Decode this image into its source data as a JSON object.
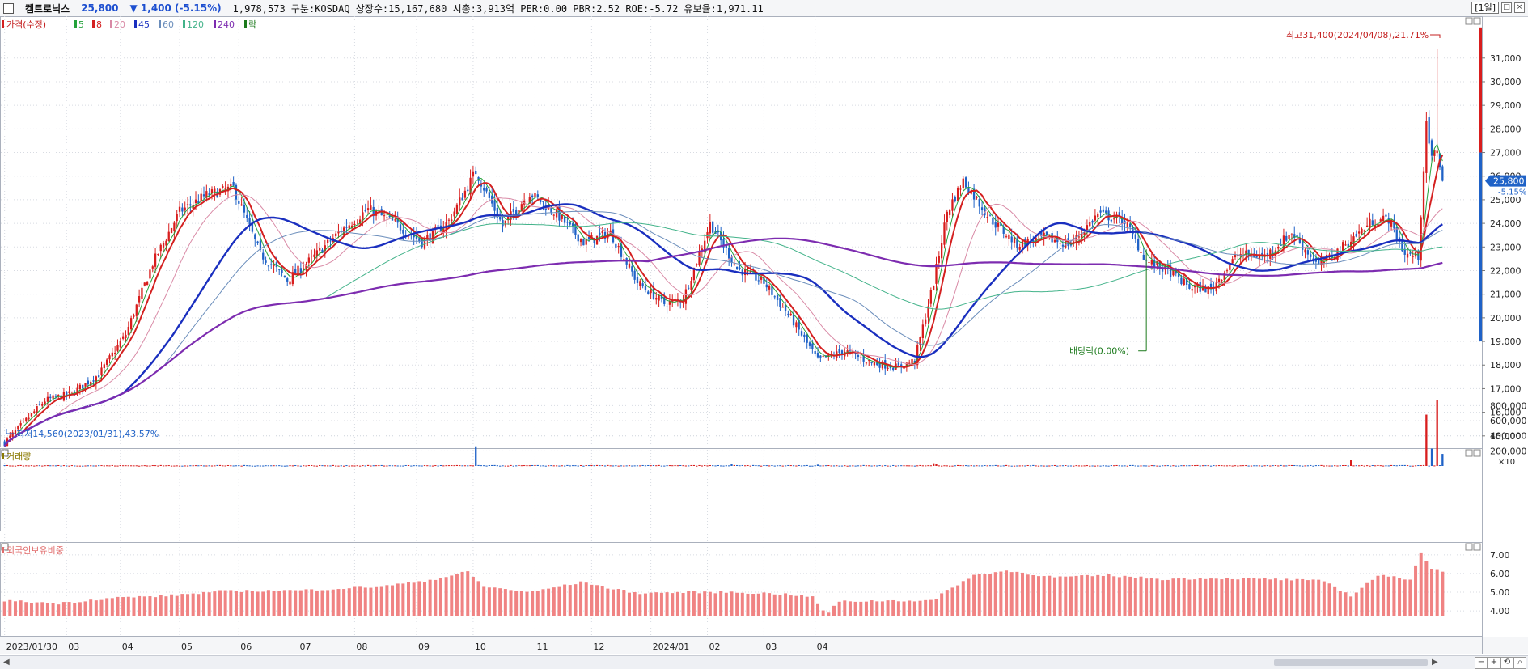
{
  "header": {
    "stock_name": "켐트로닉스",
    "price": "25,800",
    "change": "▼ 1,400  (-5.15%)",
    "info": "1,978,573  구분:KOSDAQ 상장수:15,167,680 시총:3,913억 PER:0.00 PBR:2.52 ROE:-5.72 유보율:1,971.11",
    "period": "[1일]"
  },
  "legend": {
    "price": "가격(수정)",
    "ma": [
      {
        "label": "5",
        "color": "#23a23a"
      },
      {
        "label": "8",
        "color": "#d42020"
      },
      {
        "label": "20",
        "color": "#d98aa6"
      },
      {
        "label": "45",
        "color": "#1a2fbf"
      },
      {
        "label": "60",
        "color": "#6a8dbb"
      },
      {
        "label": "120",
        "color": "#43b38a"
      },
      {
        "label": "240",
        "color": "#7d2cb0"
      },
      {
        "label": "락",
        "color": "#1c7a1c"
      }
    ],
    "volume": "거래량",
    "foreign": "외국인보유비중"
  },
  "annotations": {
    "high": "최고31,400(2024/04/08),21.71%",
    "low": "최저14,560(2023/01/31),43.57%",
    "dividend": "배당락(0.00%)",
    "last_price": "25,800",
    "last_change": "-5.15%"
  },
  "colors": {
    "up": "#d81d1d",
    "down": "#1f62c7",
    "foreign_bar": "#f08383",
    "grid": "#d8dbe2"
  },
  "chart_data": [
    {
      "type": "candlestick",
      "title": "가격(수정)",
      "ylim": [
        14000,
        32500
      ],
      "y_ticks": [
        "31,000",
        "30,000",
        "29,000",
        "28,000",
        "27,000",
        "26,000",
        "25,000",
        "24,000",
        "23,000",
        "22,000",
        "21,000",
        "20,000",
        "19,000",
        "18,000",
        "17,000",
        "16,000",
        "15,000"
      ],
      "x_ticks": [
        "2023/01/30",
        "03",
        "04",
        "05",
        "06",
        "07",
        "08",
        "09",
        "10",
        "11",
        "12",
        "2024/01",
        "02",
        "03",
        "04"
      ],
      "trend_closes": [
        [
          0,
          14700
        ],
        [
          5,
          15300
        ],
        [
          15,
          16500
        ],
        [
          25,
          16800
        ],
        [
          35,
          17600
        ],
        [
          45,
          19300
        ],
        [
          55,
          22300
        ],
        [
          65,
          24500
        ],
        [
          75,
          25200
        ],
        [
          85,
          25500
        ],
        [
          95,
          22700
        ],
        [
          105,
          21600
        ],
        [
          115,
          22600
        ],
        [
          125,
          23700
        ],
        [
          135,
          24600
        ],
        [
          145,
          24000
        ],
        [
          155,
          23200
        ],
        [
          165,
          24100
        ],
        [
          175,
          26200
        ],
        [
          185,
          23900
        ],
        [
          195,
          25300
        ],
        [
          205,
          24400
        ],
        [
          215,
          23200
        ],
        [
          225,
          23600
        ],
        [
          235,
          21500
        ],
        [
          245,
          20600
        ],
        [
          252,
          20800
        ],
        [
          262,
          24000
        ],
        [
          272,
          22100
        ],
        [
          282,
          21500
        ],
        [
          292,
          20000
        ],
        [
          302,
          18200
        ],
        [
          312,
          18600
        ],
        [
          322,
          18100
        ],
        [
          332,
          17900
        ],
        [
          338,
          18200
        ],
        [
          345,
          21500
        ],
        [
          350,
          24500
        ],
        [
          356,
          25800
        ],
        [
          366,
          24200
        ],
        [
          376,
          23100
        ],
        [
          386,
          23400
        ],
        [
          396,
          23100
        ],
        [
          406,
          24400
        ],
        [
          416,
          24100
        ],
        [
          424,
          22400
        ],
        [
          432,
          22000
        ],
        [
          440,
          21300
        ],
        [
          448,
          21200
        ],
        [
          458,
          22700
        ],
        [
          468,
          22600
        ],
        [
          478,
          23600
        ],
        [
          488,
          22200
        ],
        [
          498,
          23100
        ],
        [
          508,
          24100
        ],
        [
          514,
          24200
        ],
        [
          520,
          22700
        ],
        [
          525,
          22600
        ],
        [
          528,
          28100
        ],
        [
          530,
          26700
        ],
        [
          532,
          27200
        ],
        [
          534,
          25800
        ]
      ],
      "high": 31400,
      "low": 14560,
      "last_close": 25800,
      "last_change_pct": -5.15
    },
    {
      "type": "bar",
      "title": "거래량",
      "unit": "×10",
      "ylim": [
        0,
        900000
      ],
      "y_ticks": [
        "800,000",
        "600,000",
        "400,000",
        "200,000"
      ],
      "spikes": [
        [
          175,
          260000
        ],
        [
          270,
          27000
        ],
        [
          302,
          18000
        ],
        [
          345,
          36000
        ],
        [
          346,
          22000
        ],
        [
          500,
          75000
        ],
        [
          528,
          680000
        ],
        [
          530,
          230000
        ],
        [
          532,
          870000
        ],
        [
          534,
          160000
        ]
      ]
    },
    {
      "type": "bar",
      "title": "외국인보유비중",
      "ylim": [
        3.7,
        7.6
      ],
      "y_ticks": [
        "7.00",
        "6.00",
        "5.00",
        "4.00"
      ],
      "trend": [
        [
          0,
          4.55
        ],
        [
          20,
          4.4
        ],
        [
          40,
          4.7
        ],
        [
          60,
          4.8
        ],
        [
          80,
          5.05
        ],
        [
          110,
          5.1
        ],
        [
          140,
          5.3
        ],
        [
          160,
          5.7
        ],
        [
          172,
          6.1
        ],
        [
          178,
          5.3
        ],
        [
          195,
          5.0
        ],
        [
          215,
          5.55
        ],
        [
          225,
          5.2
        ],
        [
          235,
          4.95
        ],
        [
          255,
          5.0
        ],
        [
          270,
          5.0
        ],
        [
          290,
          4.9
        ],
        [
          300,
          4.75
        ],
        [
          305,
          3.8
        ],
        [
          310,
          4.5
        ],
        [
          330,
          4.55
        ],
        [
          345,
          4.55
        ],
        [
          350,
          5.1
        ],
        [
          360,
          5.9
        ],
        [
          372,
          6.15
        ],
        [
          390,
          5.8
        ],
        [
          410,
          5.9
        ],
        [
          430,
          5.7
        ],
        [
          450,
          5.75
        ],
        [
          470,
          5.7
        ],
        [
          490,
          5.6
        ],
        [
          500,
          4.8
        ],
        [
          510,
          5.9
        ],
        [
          522,
          5.7
        ],
        [
          526,
          7.15
        ],
        [
          530,
          6.2
        ],
        [
          534,
          6.15
        ]
      ]
    }
  ]
}
